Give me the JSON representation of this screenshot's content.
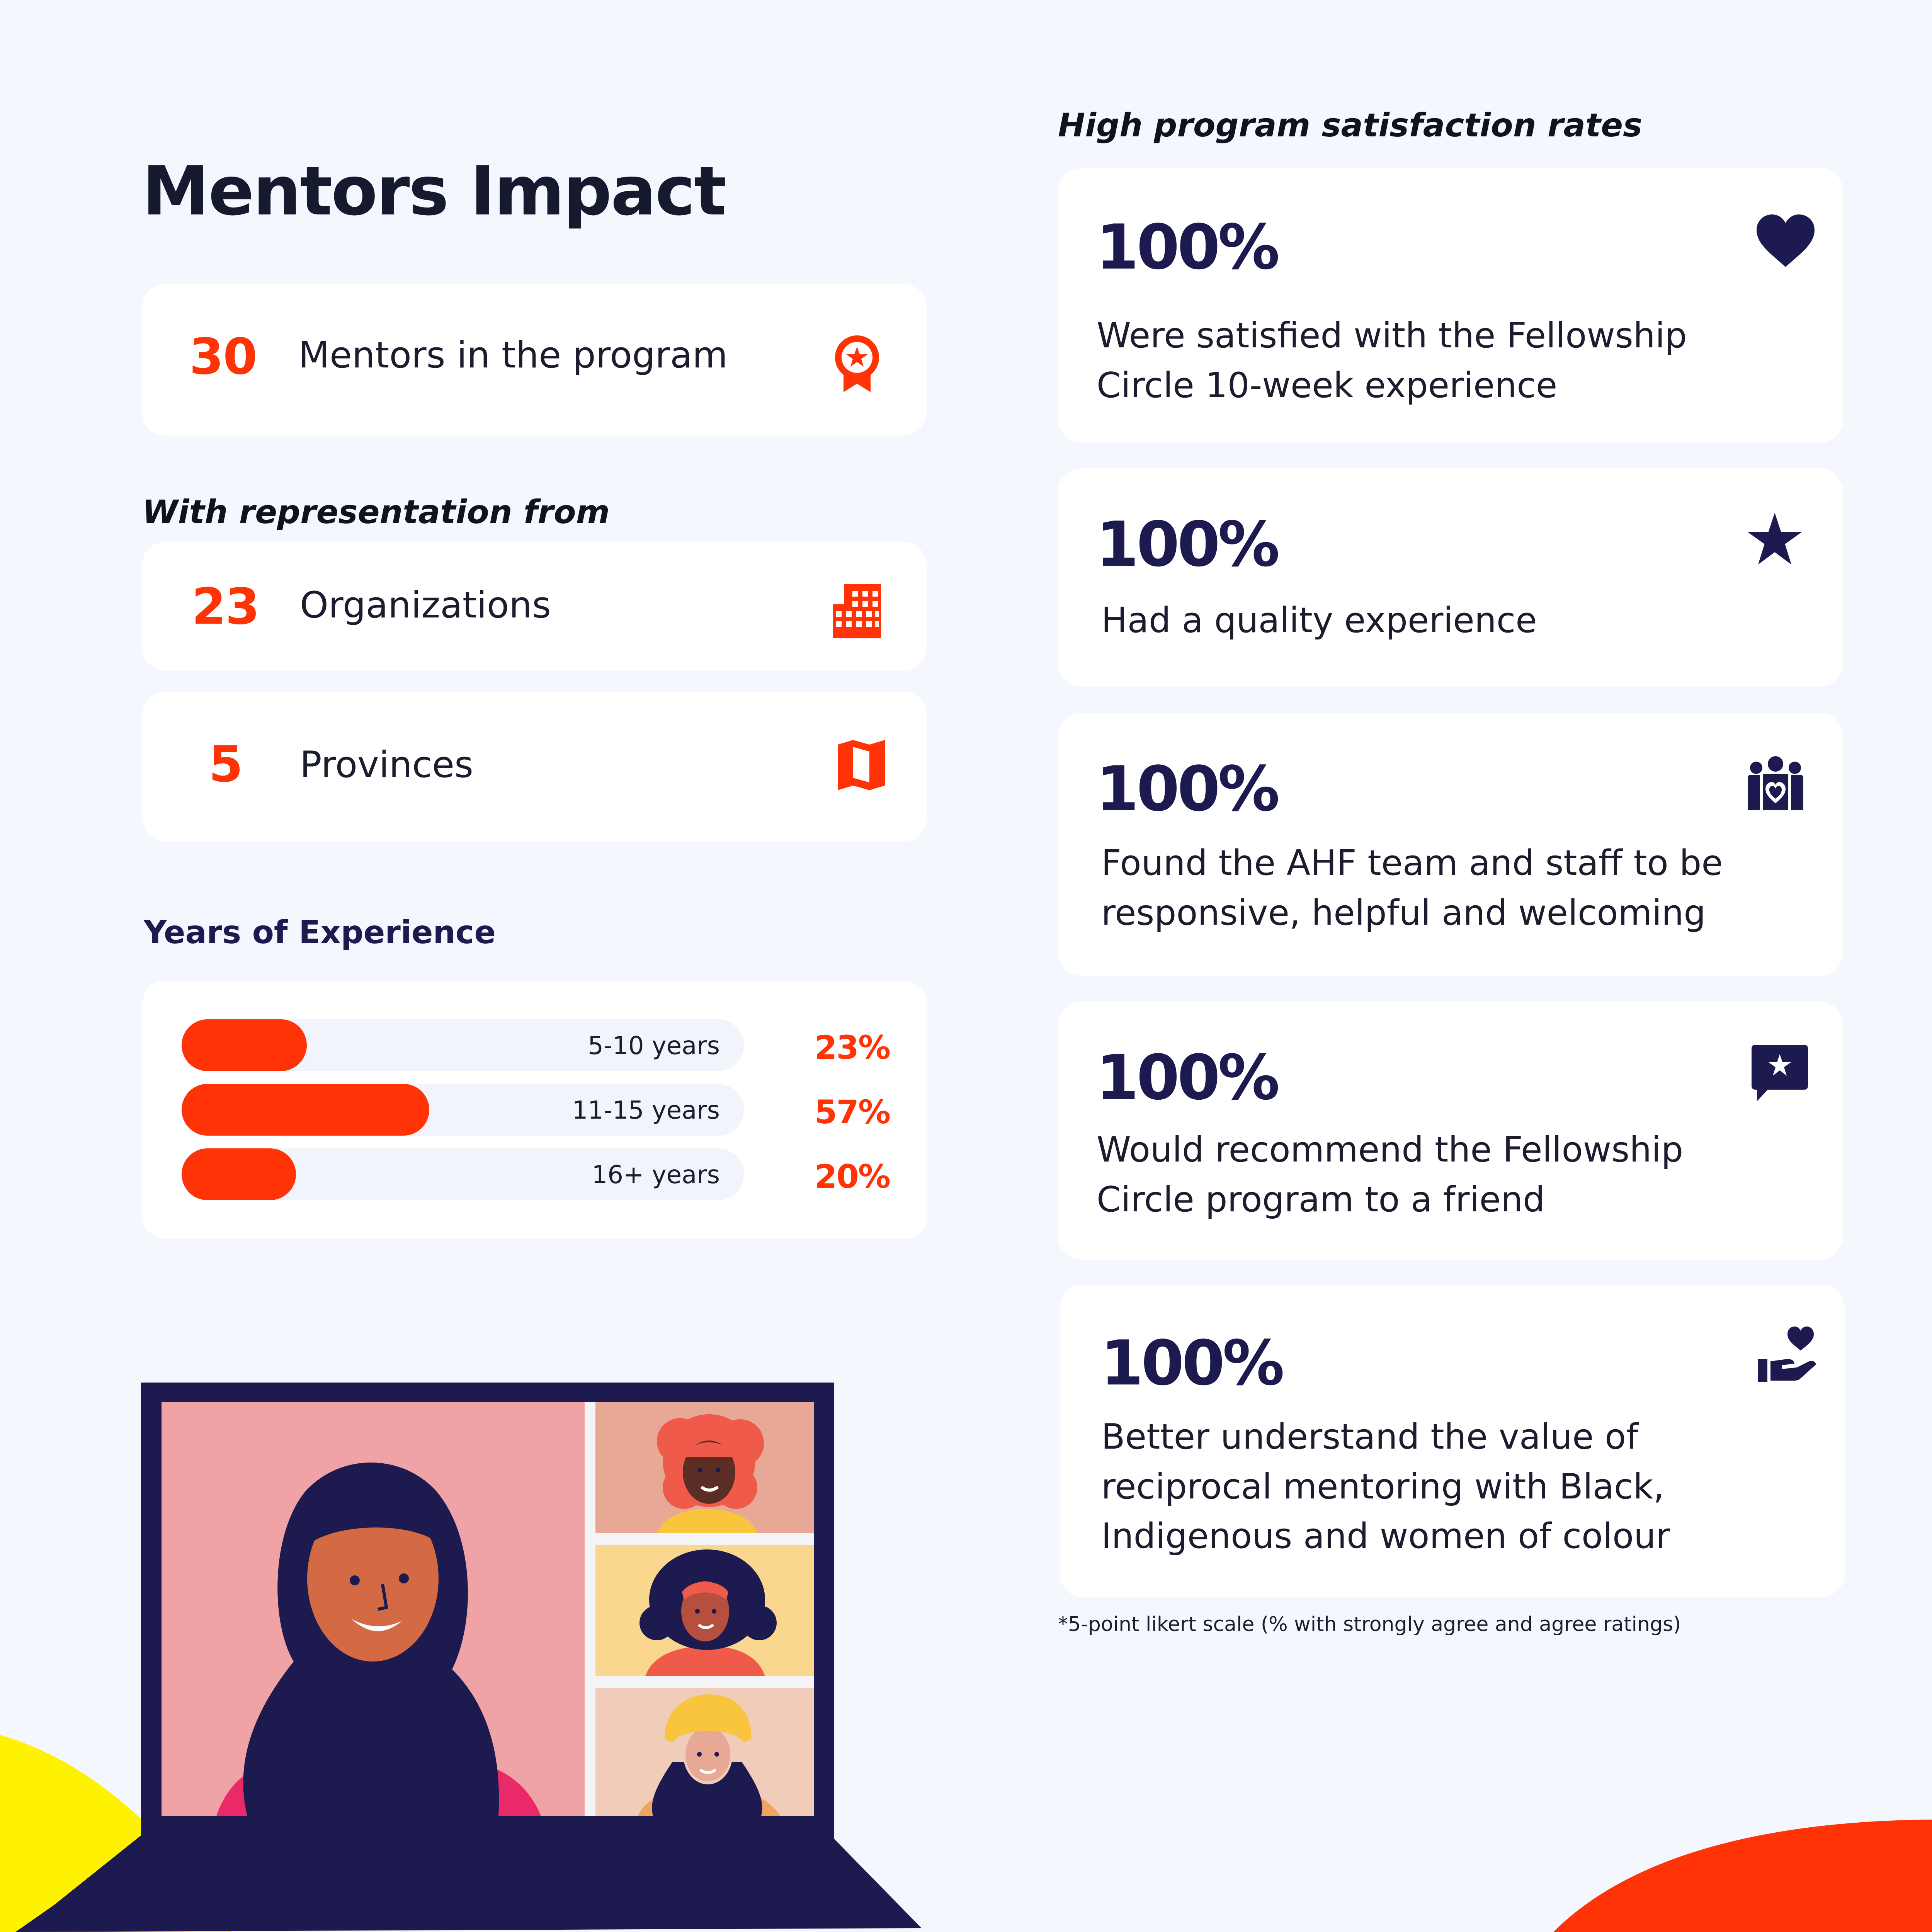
{
  "title": "Mentors Impact",
  "mentors": {
    "value": "30",
    "label": "Mentors in the program",
    "icon": "award-ribbon-icon"
  },
  "representation": {
    "heading": "With representation from",
    "items": [
      {
        "value": "23",
        "label": "Organizations",
        "icon": "building-icon"
      },
      {
        "value": "5",
        "label": "Provinces",
        "icon": "map-icon"
      }
    ]
  },
  "experience": {
    "heading": "Years of Experience",
    "rows": [
      {
        "label": "5-10 years",
        "pct_text": "23%",
        "value": 23
      },
      {
        "label": "11-15 years",
        "pct_text": "57%",
        "value": 57
      },
      {
        "label": "16+ years",
        "pct_text": "20%",
        "value": 20
      }
    ]
  },
  "satisfaction": {
    "heading": "High program satisfaction rates",
    "items": [
      {
        "value": "100%",
        "desc": "Were satisfied with the Fellowship Circle 10-week experience",
        "icon": "heart-icon"
      },
      {
        "value": "100%",
        "desc": "Had a quality experience",
        "icon": "star-icon"
      },
      {
        "value": "100%",
        "desc": "Found the AHF team and staff to be responsive, helpful and welcoming",
        "icon": "team-heart-icon"
      },
      {
        "value": "100%",
        "desc": "Would recommend the Fellowship Circle program to a friend",
        "icon": "chat-star-icon"
      },
      {
        "value": "100%",
        "desc": "Better understand the value of reciprocal mentoring with Black, Indigenous and women of colour",
        "icon": "hand-heart-icon"
      }
    ],
    "footnote": "*5-point likert scale (% with strongly agree and agree ratings)"
  },
  "colors": {
    "accent": "#ff3306",
    "navy": "#1d1a4f",
    "background": "#f4f7fd",
    "yellow": "#fff200"
  }
}
